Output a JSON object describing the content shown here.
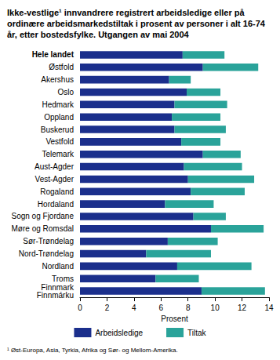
{
  "chart_data": {
    "type": "bar",
    "orientation": "horizontal",
    "stacked": true,
    "title": "Ikke-vestlige¹ innvandrere registrert arbeidsledige eller på ordinære arbeidsmarkedstiltak i prosent av personer i alt 16-74 år, etter bostedsfylke. Utgangen av mai 2004",
    "footnote": "¹ Øst-Europa, Asia, Tyrkia, Afrika og Sør- og Mellom-Amerika.",
    "x_label": "Prosent",
    "categories": [
      "Hele landet",
      "Østfold",
      "Akershus",
      "Oslo",
      "Hedmark",
      "Oppland",
      "Buskerud",
      "Vestfold",
      "Telemark",
      "Aust-Agder",
      "Vest-Agder",
      "Rogaland",
      "Hordaland",
      "Sogn og Fjordane",
      "Møre og Romsdal",
      "Sør-Trøndelag",
      "Nord-Trøndelag",
      "Nordland",
      "Troms",
      "Finnmark\nFinnmárku"
    ],
    "series": [
      {
        "name": "Arbeidsledige",
        "color": "#1b2f8c",
        "values": [
          7.6,
          9.1,
          6.6,
          7.9,
          7.0,
          6.8,
          7.0,
          7.5,
          9.1,
          7.7,
          8.0,
          8.2,
          6.3,
          8.4,
          9.7,
          6.5,
          4.9,
          7.2,
          5.6,
          9.0
        ]
      },
      {
        "name": "Tiltak",
        "color": "#2aa39a",
        "values": [
          3.1,
          4.1,
          1.6,
          2.5,
          3.9,
          3.6,
          3.8,
          2.9,
          2.8,
          4.3,
          4.9,
          4.0,
          3.6,
          2.4,
          3.9,
          3.7,
          4.8,
          5.5,
          3.2,
          4.7
        ]
      }
    ],
    "xlim": [
      0,
      14
    ],
    "xticks": [
      0,
      2,
      4,
      6,
      8,
      10,
      12,
      14
    ],
    "grid": false,
    "legend": "bottom"
  }
}
